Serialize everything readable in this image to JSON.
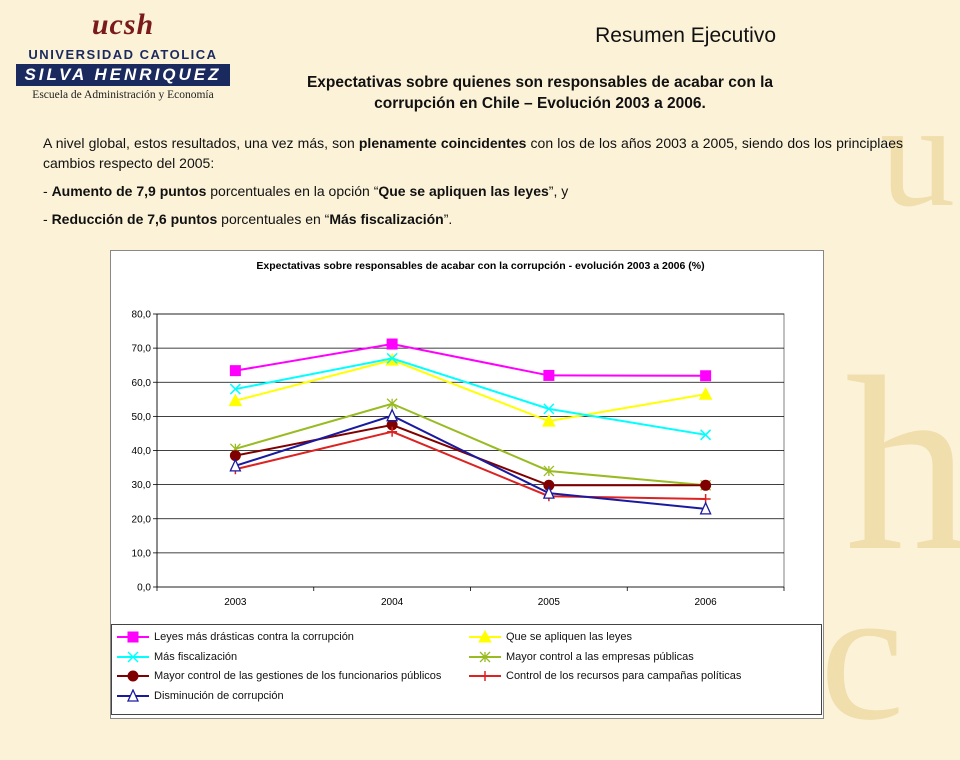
{
  "header": {
    "logo": {
      "brand": "ucsh",
      "line1": "UNIVERSIDAD CATOLICA",
      "line2": "SILVA HENRIQUEZ",
      "line3": "Escuela de Administración y Economía"
    },
    "title": "Resumen Ejecutivo",
    "subtitle_line1": "Expectativas sobre quienes son responsables de acabar con la",
    "subtitle_line2": "corrupción en Chile – Evolución 2003 a 2006."
  },
  "body": {
    "p1_a": "A nivel global, estos resultados, una vez más, son ",
    "p1_b": "plenamente coincidentes",
    "p1_c": " con los de los años 2003 a 2005, siendo dos los principlaes cambios respecto del 2005:",
    "b1_a": "- ",
    "b1_b": "Aumento de 7,9 puntos",
    "b1_c": " porcentuales en la opción “",
    "b1_d": "Que se apliquen las leyes",
    "b1_e": "”, y",
    "b2_a": "- ",
    "b2_b": "Reducción de 7,6 puntos",
    "b2_c": " porcentuales en “",
    "b2_d": "Más fiscalización",
    "b2_e": "”."
  },
  "chart_data": {
    "type": "line",
    "title": "Expectativas sobre responsables de acabar con la corrupción - evolución 2003 a 2006 (%)",
    "categories": [
      "2003",
      "2004",
      "2005",
      "2006"
    ],
    "ylim": [
      0,
      80
    ],
    "yticks": [
      "0,0",
      "10,0",
      "20,0",
      "30,0",
      "40,0",
      "50,0",
      "60,0",
      "70,0",
      "80,0"
    ],
    "grid": true,
    "legend_position": "bottom",
    "series": [
      {
        "name": "Leyes más drásticas contra la corrupción",
        "values": [
          63.4,
          71.2,
          62.0,
          61.9
        ],
        "color": "#ff00ff",
        "marker": "square"
      },
      {
        "name": "Que se apliquen las leyes",
        "values": [
          54.6,
          66.5,
          48.6,
          56.5
        ],
        "color": "#ffff00",
        "marker": "triangle"
      },
      {
        "name": "Más fiscalización",
        "values": [
          58.0,
          67.0,
          52.2,
          44.6
        ],
        "color": "#00ffff",
        "marker": "x"
      },
      {
        "name": "Mayor control a las empresas públicas",
        "values": [
          40.5,
          53.7,
          34.0,
          29.8
        ],
        "color": "#99bb22",
        "marker": "star"
      },
      {
        "name": "Mayor control de las gestiones de los funcionarios públicos",
        "values": [
          38.5,
          47.5,
          29.8,
          29.8
        ],
        "color": "#800000",
        "marker": "circle"
      },
      {
        "name": "Control de los recursos para campañas políticas",
        "values": [
          34.5,
          45.5,
          26.6,
          25.8
        ],
        "color": "#dd2222",
        "marker": "plus"
      },
      {
        "name": "Disminución de corrupción",
        "values": [
          35.5,
          50.2,
          27.5,
          22.9
        ],
        "color": "#1a1aa0",
        "marker": "triangle-open"
      }
    ]
  }
}
